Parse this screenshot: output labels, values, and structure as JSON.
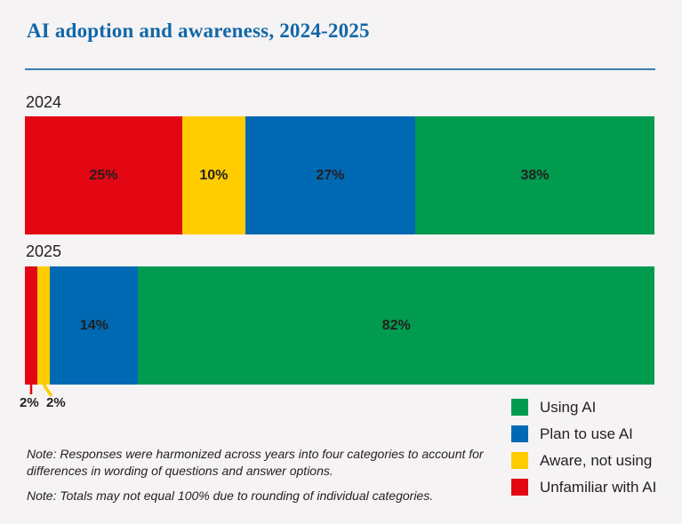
{
  "title": "AI adoption and awareness, 2024-2025",
  "colors": {
    "background": "#f5f3f4",
    "title_blue": "#1268a8",
    "divider_blue": "#3e7dab",
    "text_dark": "#231f20",
    "green": "#009b4e",
    "blue": "#0069b4",
    "yellow": "#ffcc00",
    "red": "#e30613"
  },
  "chart_data": {
    "type": "bar",
    "variant": "horizontal-stacked",
    "unit": "%",
    "xlim": [
      0,
      100
    ],
    "grid": false,
    "categories": [
      "2024",
      "2025"
    ],
    "series": [
      {
        "name": "Unfamiliar with AI",
        "color": "#e30613",
        "values": [
          25,
          2
        ]
      },
      {
        "name": "Aware, not using",
        "color": "#ffcc00",
        "values": [
          10,
          2
        ]
      },
      {
        "name": "Plan to use AI",
        "color": "#0069b4",
        "values": [
          27,
          14
        ]
      },
      {
        "name": "Using AI",
        "color": "#009b4e",
        "values": [
          38,
          82
        ]
      }
    ],
    "inline_label_min": 10,
    "callouts": {
      "labels": [
        "2%",
        "2%"
      ]
    },
    "legend_position": "bottom-right"
  },
  "legend": {
    "items": [
      {
        "label": "Using AI",
        "color": "#009b4e"
      },
      {
        "label": "Plan to use AI",
        "color": "#0069b4"
      },
      {
        "label": "Aware, not using",
        "color": "#ffcc00"
      },
      {
        "label": "Unfamiliar with AI",
        "color": "#e30613"
      }
    ]
  },
  "notes": [
    "Note: Responses were harmonized across years into four categories to account for differences in wording of questions and answer options.",
    "Note: Totals may not equal 100% due to rounding of individual categories."
  ]
}
